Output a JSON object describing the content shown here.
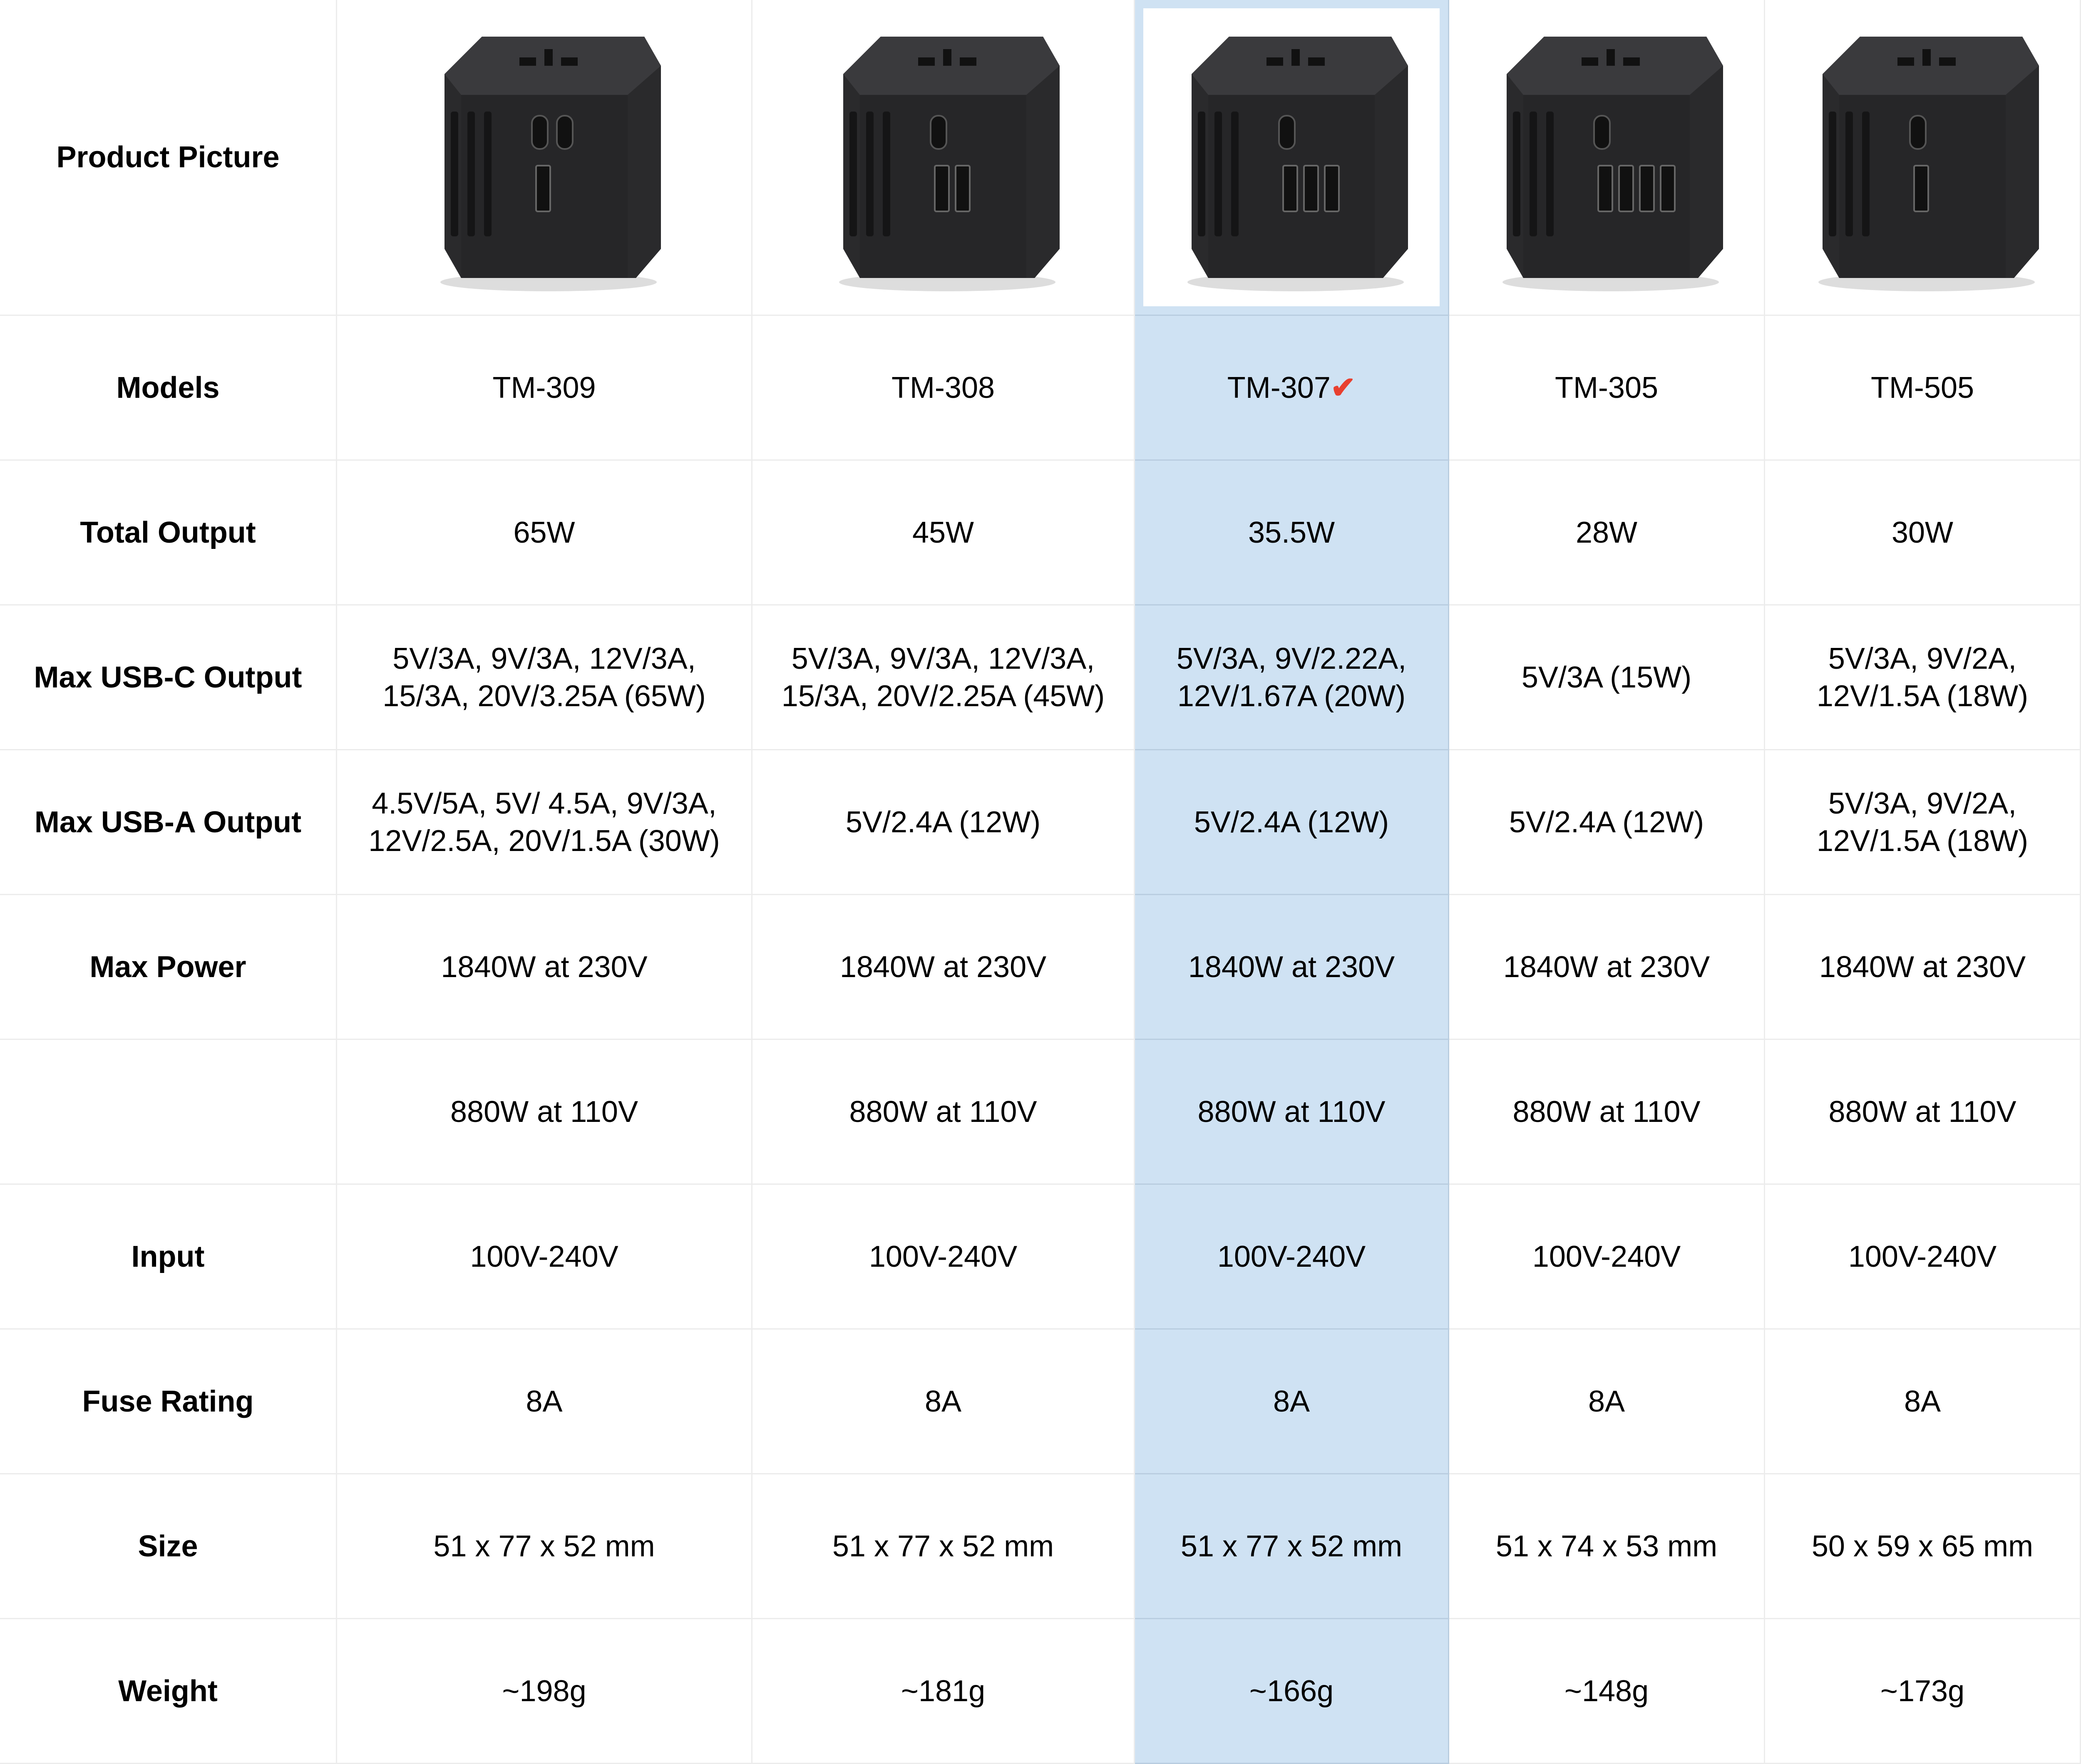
{
  "highlight_color": "#cfe2f3",
  "check_color": "#e8402f",
  "highlight_index": 2,
  "picture_label": "Product Picture",
  "products": [
    {
      "model": "TM-309",
      "usb_c": 2,
      "usb_a": 1
    },
    {
      "model": "TM-308",
      "usb_c": 1,
      "usb_a": 2
    },
    {
      "model": "TM-307",
      "usb_c": 1,
      "usb_a": 3,
      "selected": true,
      "check_icon": "checkmark-icon"
    },
    {
      "model": "TM-305",
      "usb_c": 1,
      "usb_a": 4
    },
    {
      "model": "TM-505",
      "usb_c": 1,
      "usb_a": 1
    }
  ],
  "rows": [
    {
      "label": "Models",
      "values": [
        "TM-309",
        "TM-308",
        "TM-307",
        "TM-305",
        "TM-505"
      ]
    },
    {
      "label": "Total Output",
      "values": [
        "65W",
        "45W",
        "35.5W",
        "28W",
        "30W"
      ]
    },
    {
      "label": "Max USB-C Output",
      "values": [
        "5V/3A, 9V/3A, 12V/3A,\n15/3A, 20V/3.25A (65W)",
        "5V/3A, 9V/3A, 12V/3A,\n15/3A, 20V/2.25A (45W)",
        "5V/3A, 9V/2.22A,\n12V/1.67A (20W)",
        "5V/3A (15W)",
        "5V/3A, 9V/2A,\n12V/1.5A (18W)"
      ]
    },
    {
      "label": "Max USB-A Output",
      "values": [
        "4.5V/5A, 5V/ 4.5A, 9V/3A,\n12V/2.5A, 20V/1.5A (30W)",
        "5V/2.4A (12W)",
        "5V/2.4A (12W)",
        "5V/2.4A (12W)",
        "5V/3A, 9V/2A,\n12V/1.5A (18W)"
      ]
    },
    {
      "label": "Max Power",
      "values": [
        "1840W at 230V",
        "1840W at 230V",
        "1840W at 230V",
        "1840W at 230V",
        "1840W at 230V"
      ]
    },
    {
      "label": "",
      "values": [
        "880W at 110V",
        "880W at 110V",
        "880W at 110V",
        "880W at 110V",
        "880W at 110V"
      ]
    },
    {
      "label": "Input",
      "values": [
        "100V-240V",
        "100V-240V",
        "100V-240V",
        "100V-240V",
        "100V-240V"
      ]
    },
    {
      "label": "Fuse Rating",
      "values": [
        "8A",
        "8A",
        "8A",
        "8A",
        "8A"
      ]
    },
    {
      "label": "Size",
      "values": [
        "51 x 77 x 52 mm",
        "51 x 77 x 52 mm",
        "51 x 77 x 52 mm",
        "51 x 74 x 53 mm",
        "50 x 59 x 65 mm"
      ]
    },
    {
      "label": "Weight",
      "values": [
        "~198g",
        "~181g",
        "~166g",
        "~148g",
        "~173g"
      ]
    }
  ]
}
